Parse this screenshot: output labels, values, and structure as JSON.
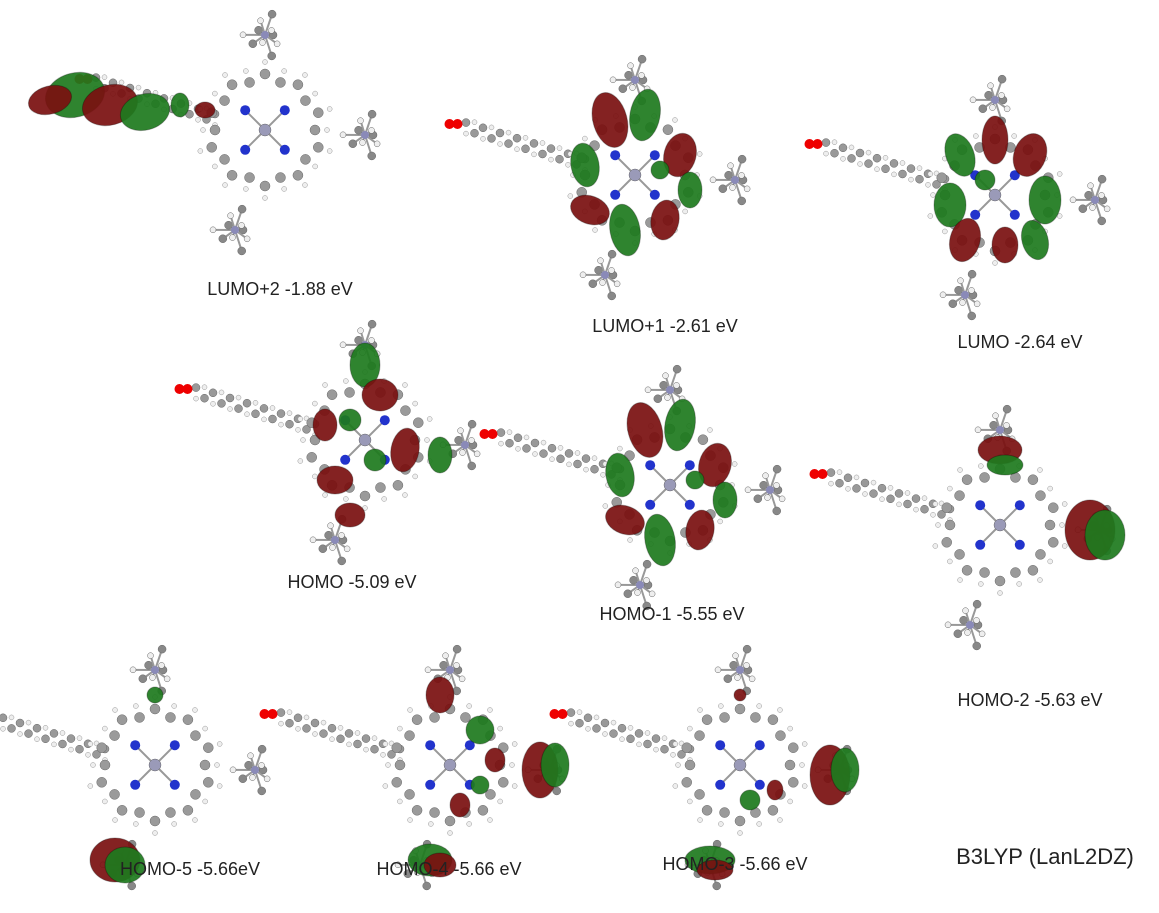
{
  "panels": [
    {
      "label": "LUMO+2 -1.88 eV"
    },
    {
      "label": "LUMO+1 -2.61 eV"
    },
    {
      "label": "LUMO -2.64 eV"
    },
    {
      "label": "HOMO -5.09 eV"
    },
    {
      "label": "HOMO-1 -5.55 eV"
    },
    {
      "label": "HOMO-2 -5.63 eV"
    },
    {
      "label": "HOMO-5 -5.66eV"
    },
    {
      "label": "HOMO-4 -5.66 eV"
    },
    {
      "label": "HOMO-3 -5.66 eV"
    }
  ],
  "method": "B3LYP (LanL2DZ)"
}
